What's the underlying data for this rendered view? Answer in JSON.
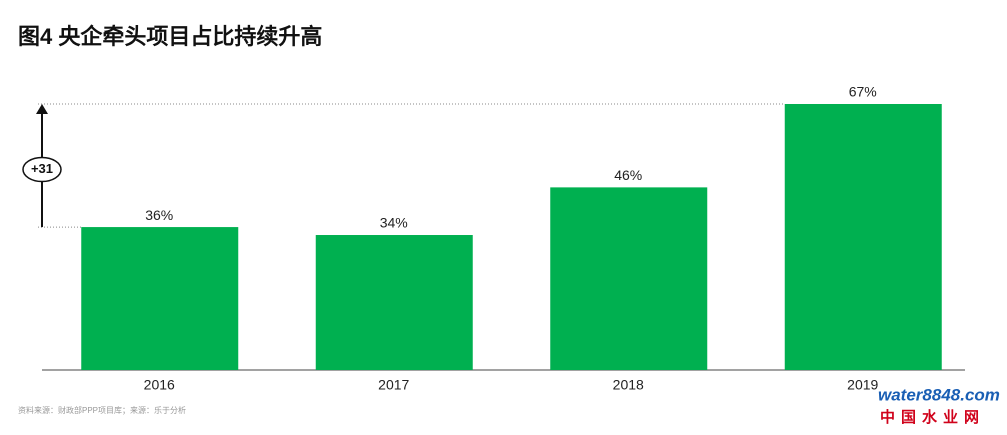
{
  "chart_data": {
    "type": "bar",
    "title": "图4 央企牵头项目占比持续升高",
    "categories": [
      "2016",
      "2017",
      "2018",
      "2019"
    ],
    "values": [
      36,
      34,
      46,
      67
    ],
    "value_labels": [
      "36%",
      "34%",
      "46%",
      "67%"
    ],
    "color": "#00b050",
    "annotation": "+31",
    "source": "资料来源：财政部PPP项目库；来源：乐于分析"
  },
  "watermark": {
    "site": "water8848.com",
    "name": "中国水业网"
  }
}
